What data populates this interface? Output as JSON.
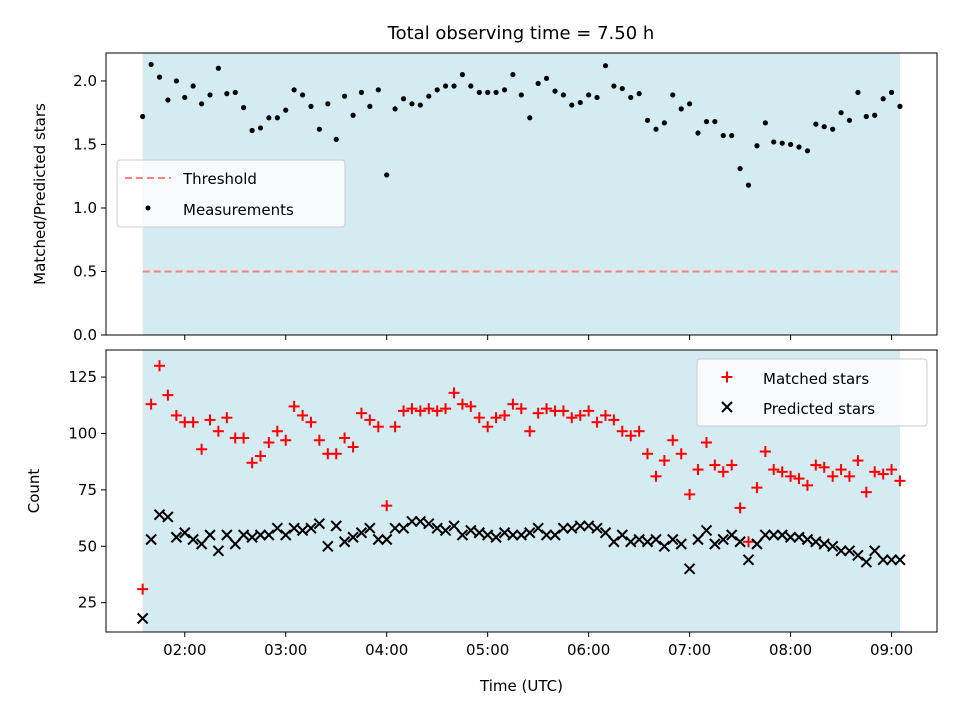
{
  "chart_data": {
    "title": "Total observing time = 7.50 h",
    "xlabel": "Time (UTC)",
    "x_unit": "hours UTC",
    "xlim": [
      1.22,
      9.45
    ],
    "x_ticks": [
      2,
      3,
      4,
      5,
      6,
      7,
      8,
      9
    ],
    "x_tick_labels": [
      "02:00",
      "03:00",
      "04:00",
      "05:00",
      "06:00",
      "07:00",
      "08:00",
      "09:00"
    ],
    "observing_window": {
      "start": 1.583,
      "end": 9.083,
      "color": "#add8e6"
    },
    "x": [
      1.583,
      1.667,
      1.75,
      1.833,
      1.917,
      2.0,
      2.083,
      2.167,
      2.25,
      2.333,
      2.417,
      2.5,
      2.583,
      2.667,
      2.75,
      2.833,
      2.917,
      3.0,
      3.083,
      3.167,
      3.25,
      3.333,
      3.417,
      3.5,
      3.583,
      3.667,
      3.75,
      3.833,
      3.917,
      4.0,
      4.083,
      4.167,
      4.25,
      4.333,
      4.417,
      4.5,
      4.583,
      4.667,
      4.75,
      4.833,
      4.917,
      5.0,
      5.083,
      5.167,
      5.25,
      5.333,
      5.417,
      5.5,
      5.583,
      5.667,
      5.75,
      5.833,
      5.917,
      6.0,
      6.083,
      6.167,
      6.25,
      6.333,
      6.417,
      6.5,
      6.583,
      6.667,
      6.75,
      6.833,
      6.917,
      7.0,
      7.083,
      7.167,
      7.25,
      7.333,
      7.417,
      7.5,
      7.583,
      7.667,
      7.75,
      7.833,
      7.917,
      8.0,
      8.083,
      8.167,
      8.25,
      8.333,
      8.417,
      8.5,
      8.583,
      8.667,
      8.75,
      8.833,
      8.917,
      9.0,
      9.083
    ],
    "panels": [
      {
        "type": "scatter",
        "ylabel": "Matched/Predicted stars",
        "ylim": [
          0,
          2.22
        ],
        "y_ticks": [
          0.0,
          0.5,
          1.0,
          1.5,
          2.0
        ],
        "y_tick_labels": [
          "0.0",
          "0.5",
          "1.0",
          "1.5",
          "2.0"
        ],
        "threshold": {
          "name": "Threshold",
          "value": 0.5,
          "color": "#ff7f7f"
        },
        "legend_position": "center-left",
        "series": [
          {
            "name": "Measurements",
            "color": "#000000",
            "marker": "dot",
            "values": [
              1.72,
              2.13,
              2.03,
              1.85,
              2.0,
              1.87,
              1.96,
              1.82,
              1.89,
              2.1,
              1.9,
              1.91,
              1.79,
              1.61,
              1.63,
              1.71,
              1.71,
              1.77,
              1.93,
              1.89,
              1.8,
              1.62,
              1.82,
              1.54,
              1.88,
              1.73,
              1.91,
              1.8,
              1.93,
              1.26,
              1.78,
              1.86,
              1.82,
              1.81,
              1.88,
              1.93,
              1.96,
              1.96,
              2.05,
              1.96,
              1.91,
              1.91,
              1.91,
              1.93,
              2.05,
              1.89,
              1.71,
              1.98,
              2.02,
              1.92,
              1.89,
              1.81,
              1.83,
              1.89,
              1.87,
              2.12,
              1.96,
              1.94,
              1.87,
              1.9,
              1.69,
              1.62,
              1.67,
              1.89,
              1.78,
              1.82,
              1.59,
              1.68,
              1.68,
              1.57,
              1.57,
              1.31,
              1.18,
              1.49,
              1.67,
              1.52,
              1.51,
              1.5,
              1.48,
              1.45,
              1.66,
              1.64,
              1.62,
              1.75,
              1.69,
              1.91,
              1.72,
              1.73,
              1.86,
              1.91,
              1.8
            ]
          }
        ]
      },
      {
        "type": "scatter",
        "ylabel": "Count",
        "ylim": [
          12,
          137
        ],
        "y_ticks": [
          25,
          50,
          75,
          100,
          125
        ],
        "y_tick_labels": [
          "25",
          "50",
          "75",
          "100",
          "125"
        ],
        "legend_position": "top-right",
        "series": [
          {
            "name": "Matched stars",
            "color": "#ff0000",
            "marker": "plus",
            "values": [
              31,
              113,
              130,
              117,
              108,
              105,
              105,
              93,
              106,
              101,
              107,
              98,
              98,
              87,
              90,
              96,
              101,
              97,
              112,
              108,
              105,
              97,
              91,
              91,
              98,
              94,
              109,
              106,
              103,
              68,
              103,
              110,
              111,
              110,
              111,
              110,
              111,
              118,
              113,
              112,
              107,
              103,
              107,
              108,
              113,
              111,
              101,
              109,
              111,
              110,
              110,
              107,
              108,
              110,
              105,
              108,
              106,
              101,
              99,
              101,
              91,
              81,
              88,
              97,
              91,
              73,
              84,
              96,
              86,
              83,
              86,
              67,
              52,
              76,
              92,
              84,
              83,
              81,
              80,
              77,
              86,
              85,
              81,
              84,
              81,
              88,
              74,
              83,
              82,
              84,
              79
            ]
          },
          {
            "name": "Predicted stars",
            "color": "#000000",
            "marker": "cross",
            "values": [
              18,
              53,
              64,
              63,
              54,
              56,
              53,
              51,
              55,
              48,
              55,
              51,
              55,
              54,
              55,
              55,
              58,
              55,
              58,
              57,
              58,
              60,
              50,
              59,
              52,
              54,
              56,
              58,
              53,
              53,
              58,
              58,
              61,
              61,
              60,
              58,
              57,
              59,
              55,
              57,
              56,
              55,
              54,
              56,
              55,
              55,
              56,
              58,
              55,
              55,
              58,
              58,
              59,
              59,
              58,
              56,
              52,
              55,
              52,
              53,
              52,
              53,
              50,
              53,
              51,
              40,
              53,
              57,
              51,
              53,
              55,
              52,
              44,
              51,
              55,
              55,
              55,
              54,
              54,
              53,
              52,
              51,
              50,
              48,
              48,
              46,
              43,
              48,
              44,
              44,
              44
            ]
          }
        ]
      }
    ]
  }
}
